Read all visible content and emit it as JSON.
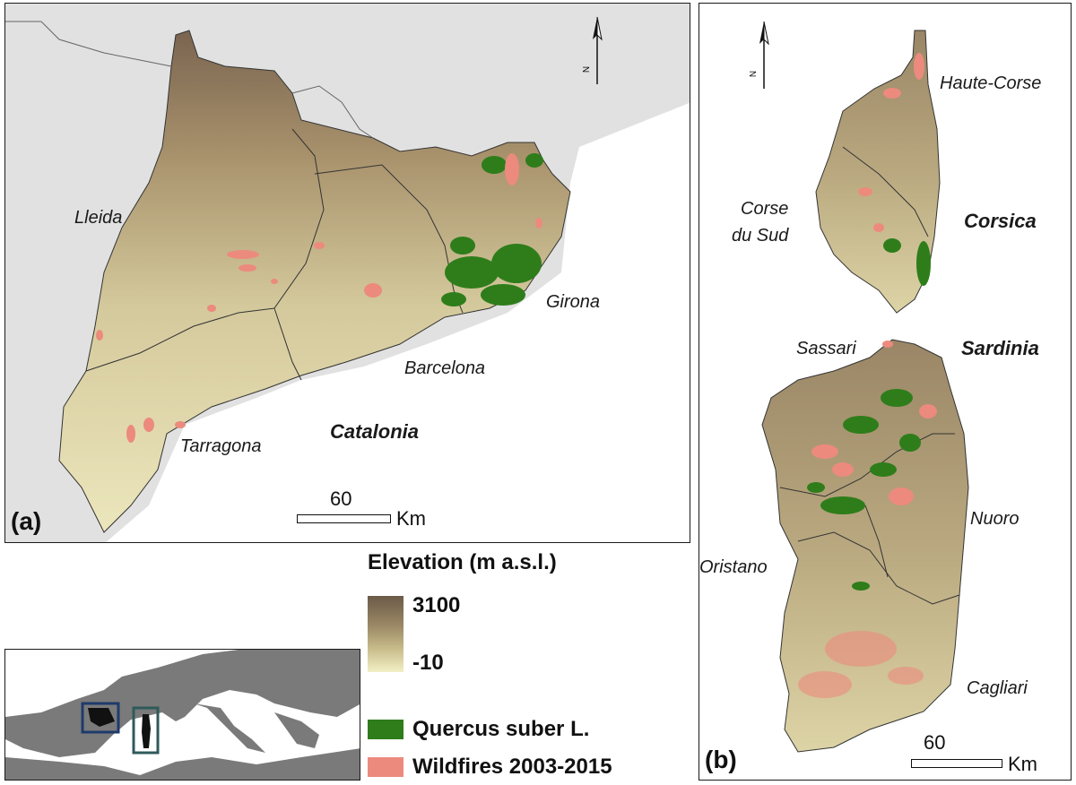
{
  "panel_a": {
    "letter": "(a)",
    "region": "Catalonia",
    "provinces": [
      "Lleida",
      "Girona",
      "Barcelona",
      "Tarragona"
    ],
    "scale": {
      "value": "60",
      "unit": "Km"
    },
    "north_label": "N"
  },
  "panel_b": {
    "letter": "(b)",
    "regions": [
      "Corsica",
      "Sardinia"
    ],
    "provinces": {
      "haute_corse": "Haute-Corse",
      "corse_du_sud_1": "Corse",
      "corse_du_sud_2": "du Sud",
      "sassari": "Sassari",
      "nuoro": "Nuoro",
      "oristano": "Oristano",
      "cagliari": "Cagliari"
    },
    "scale": {
      "value": "60",
      "unit": "Km"
    },
    "north_label": "N"
  },
  "legend": {
    "elevation_title": "Elevation (m a.s.l.)",
    "elevation_max": "3100",
    "elevation_min": "-10",
    "quercus": "Quercus suber L.",
    "wildfires": "Wildfires 2003-2015"
  },
  "colors": {
    "elevation_high": "#6b5a48",
    "elevation_low": "#f3f0c6",
    "quercus": "#2e7d1a",
    "wildfires": "#ec8a7e",
    "inset_land": "#7a7a7a",
    "inset_box_catalonia": "#1f3a6b",
    "inset_box_sardinia": "#2f5a5a"
  }
}
